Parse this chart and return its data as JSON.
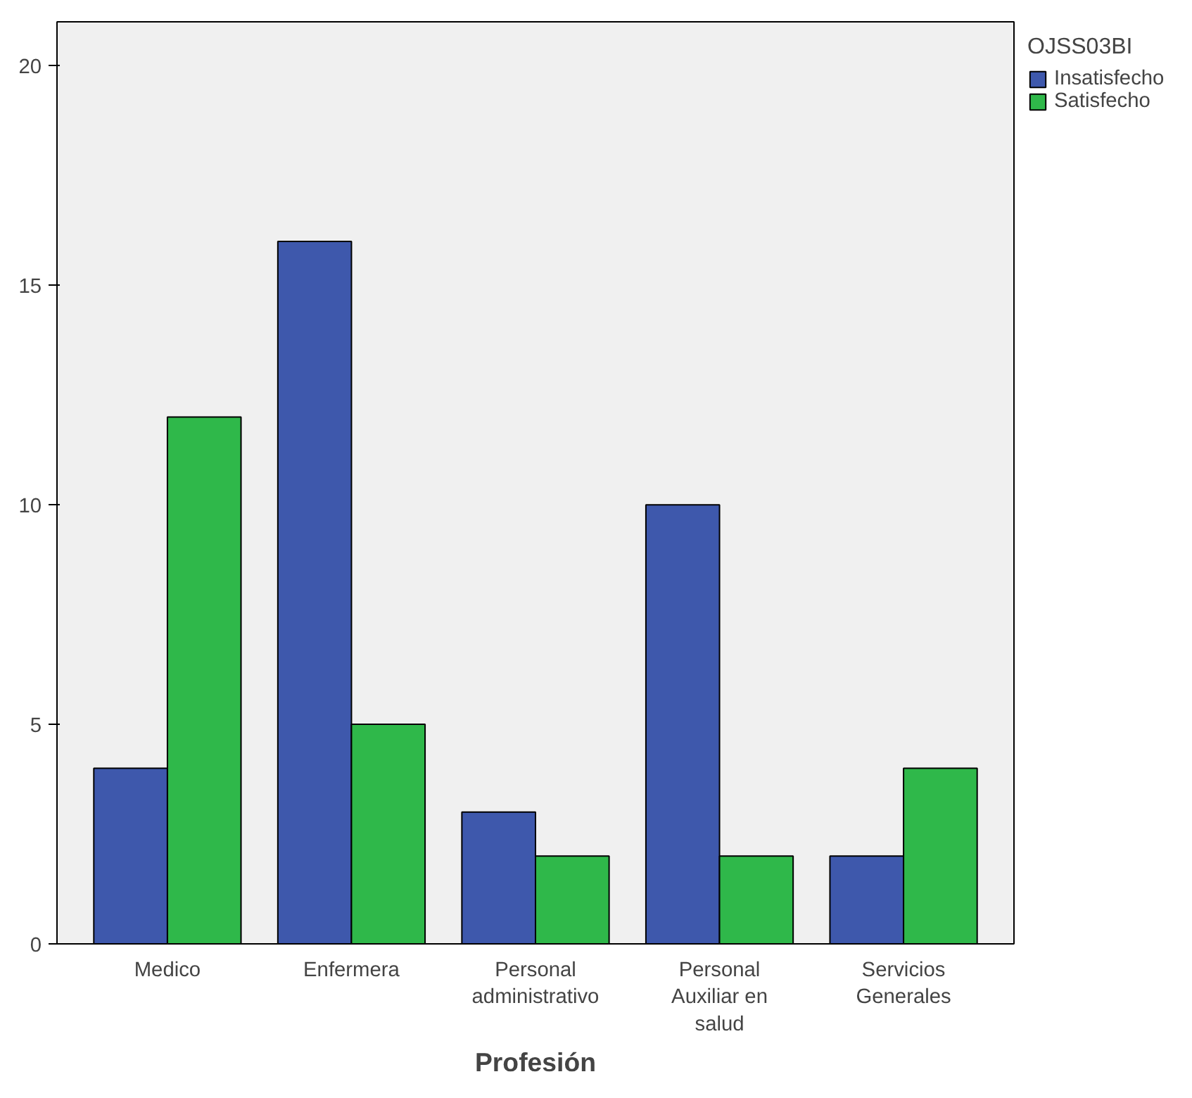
{
  "chart_data": {
    "type": "bar",
    "xlabel": "Profesión",
    "legend_title": "OJSS03BI",
    "legend": "top right",
    "grid": false,
    "categories": [
      "Medico",
      "Enfermera",
      "Personal administrativo",
      "Personal Auxiliar en salud",
      "Servicios Generales"
    ],
    "series": [
      {
        "name": "Insatisfecho",
        "color": "#3e58ac",
        "values": [
          4,
          16,
          3,
          10,
          2
        ]
      },
      {
        "name": "Satisfecho",
        "color": "#2fb84a",
        "values": [
          12,
          5,
          2,
          2,
          4
        ]
      }
    ],
    "ylim": [
      0,
      21
    ],
    "yticks": [
      0,
      5,
      10,
      15,
      20
    ]
  }
}
